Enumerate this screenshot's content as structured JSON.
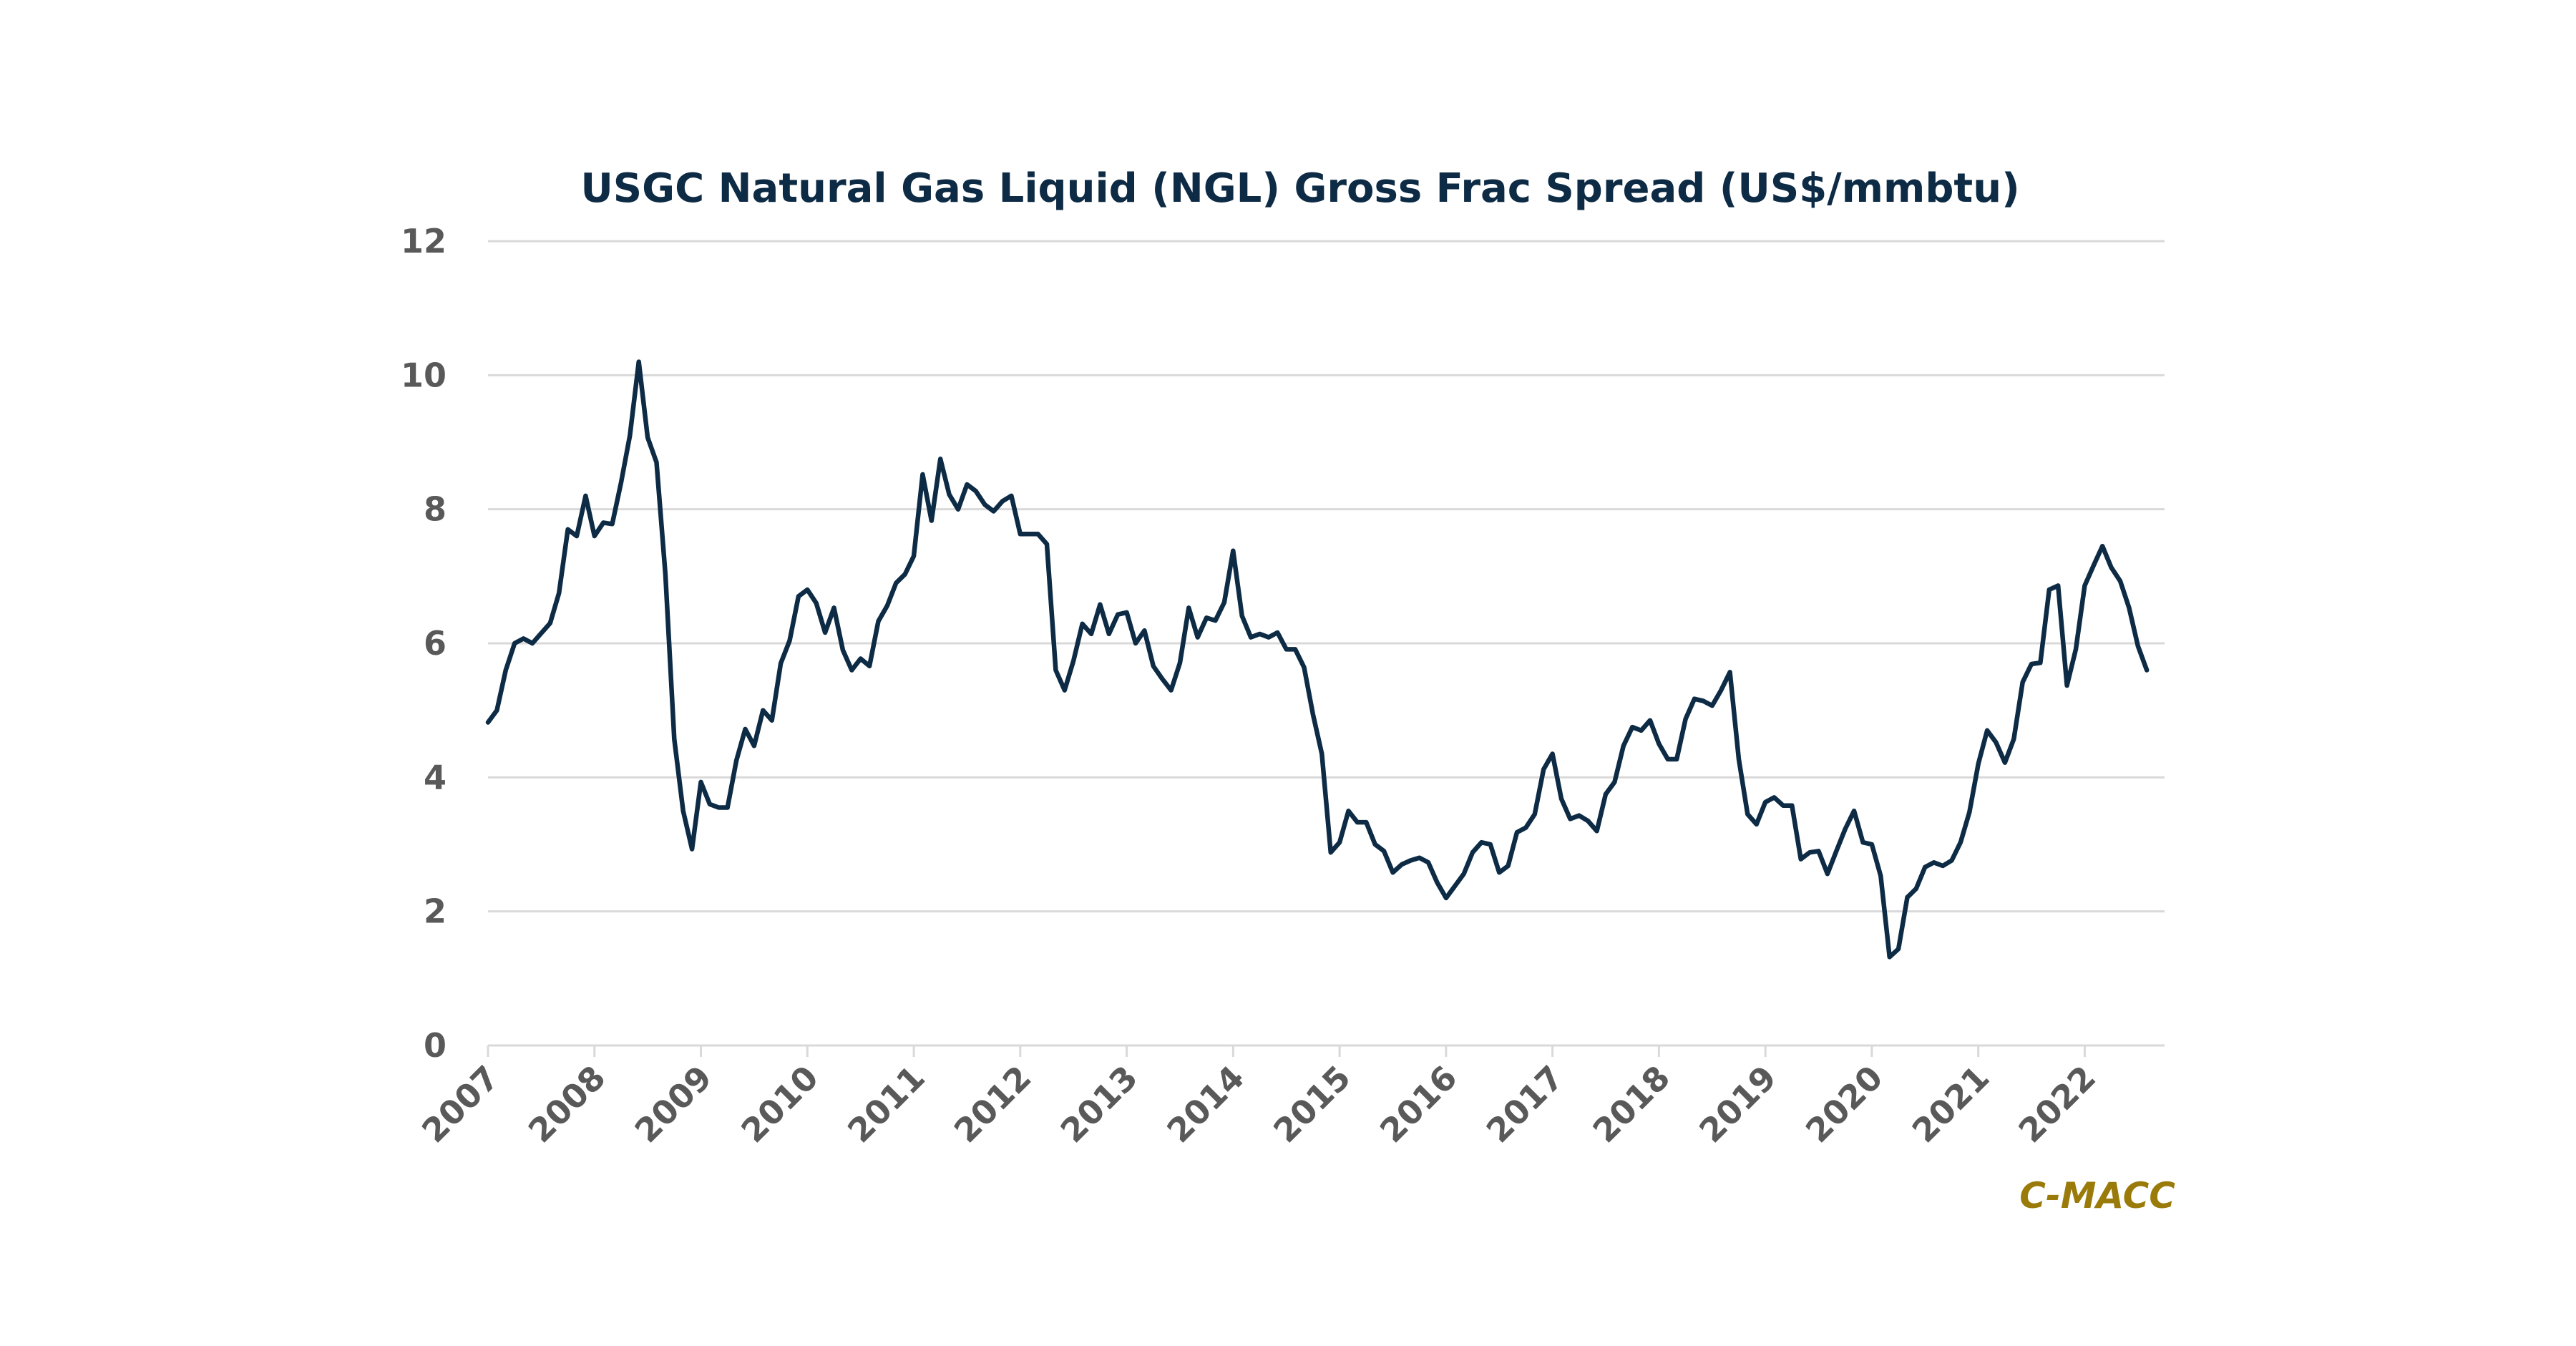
{
  "chart_data": {
    "type": "line",
    "title": "USGC Natural Gas Liquid (NGL) Gross Frac Spread (US$/mmbtu)",
    "xlabel": "",
    "ylabel": "",
    "ylim": [
      0,
      12
    ],
    "yticks": [
      "0",
      "2",
      "4",
      "6",
      "8",
      "10",
      "12"
    ],
    "xlim": [
      2007,
      2022.75
    ],
    "xticks": [
      "2007",
      "2008",
      "2009",
      "2010",
      "2011",
      "2012",
      "2013",
      "2014",
      "2015",
      "2016",
      "2017",
      "2018",
      "2019",
      "2020",
      "2021",
      "2022"
    ],
    "grid": true,
    "legend": "none",
    "series": [
      {
        "name": "Gross Frac Spread",
        "color": "#0d2b45",
        "start_year": 2007,
        "frequency": "monthly",
        "values": [
          4.82,
          5.0,
          5.6,
          6.0,
          6.07,
          6.0,
          6.15,
          6.3,
          6.75,
          7.7,
          7.6,
          8.2,
          7.6,
          7.8,
          7.78,
          8.4,
          9.1,
          10.2,
          9.07,
          8.7,
          7.03,
          4.57,
          3.5,
          2.93,
          3.93,
          3.6,
          3.55,
          3.55,
          4.25,
          4.72,
          4.47,
          5.0,
          4.85,
          5.7,
          6.04,
          6.7,
          6.8,
          6.6,
          6.16,
          6.53,
          5.9,
          5.6,
          5.77,
          5.66,
          6.33,
          6.56,
          6.9,
          7.03,
          7.3,
          8.52,
          7.83,
          8.75,
          8.22,
          8.0,
          8.37,
          8.27,
          8.07,
          7.97,
          8.12,
          8.2,
          7.63,
          7.63,
          7.63,
          7.48,
          5.6,
          5.3,
          5.74,
          6.29,
          6.14,
          6.58,
          6.14,
          6.43,
          6.46,
          6.0,
          6.19,
          5.66,
          5.47,
          5.3,
          5.71,
          6.53,
          6.09,
          6.38,
          6.34,
          6.61,
          7.38,
          6.41,
          6.09,
          6.14,
          6.09,
          6.16,
          5.91,
          5.91,
          5.64,
          4.94,
          4.35,
          2.88,
          3.03,
          3.5,
          3.33,
          3.33,
          3.0,
          2.9,
          2.58,
          2.7,
          2.76,
          2.8,
          2.73,
          2.43,
          2.2,
          2.38,
          2.56,
          2.88,
          3.03,
          3.0,
          2.58,
          2.68,
          3.18,
          3.25,
          3.45,
          4.12,
          4.35,
          3.68,
          3.38,
          3.43,
          3.35,
          3.2,
          3.75,
          3.93,
          4.47,
          4.75,
          4.7,
          4.85,
          4.5,
          4.27,
          4.27,
          4.87,
          5.17,
          5.14,
          5.07,
          5.3,
          5.57,
          4.27,
          3.45,
          3.3,
          3.63,
          3.7,
          3.58,
          3.58,
          2.78,
          2.88,
          2.9,
          2.56,
          2.9,
          3.23,
          3.5,
          3.03,
          3.0,
          2.53,
          1.32,
          1.44,
          2.21,
          2.34,
          2.66,
          2.73,
          2.68,
          2.76,
          3.03,
          3.48,
          4.2,
          4.7,
          4.52,
          4.22,
          4.57,
          5.42,
          5.69,
          5.71,
          6.8,
          6.86,
          5.37,
          5.91,
          6.86,
          7.16,
          7.45,
          7.13,
          6.93,
          6.53,
          5.96,
          5.6
        ]
      }
    ],
    "annotations": [
      {
        "text": "C-MACC",
        "color": "#9a7b0a",
        "position": "bottom-right"
      }
    ]
  }
}
